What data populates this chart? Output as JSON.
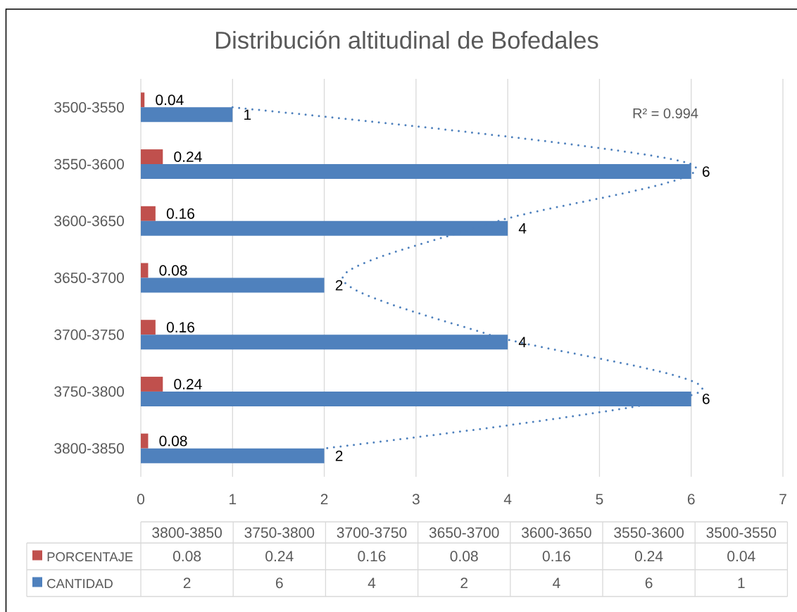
{
  "chart_data": {
    "type": "bar",
    "orientation": "horizontal",
    "title": "Distribución altitudinal de Bofedales",
    "categories": [
      "3500-3550",
      "3550-3600",
      "3600-3650",
      "3650-3700",
      "3700-3750",
      "3750-3800",
      "3800-3850"
    ],
    "series": [
      {
        "name": "PORCENTAJE",
        "color": "#c0504d",
        "values": [
          0.04,
          0.24,
          0.16,
          0.08,
          0.16,
          0.24,
          0.08
        ],
        "value_labels": [
          "0.04",
          "0.24",
          "0.16",
          "0.08",
          "0.16",
          "0.24",
          "0.08"
        ]
      },
      {
        "name": "CANTIDAD",
        "color": "#4f81bd",
        "values": [
          1,
          6,
          4,
          2,
          4,
          6,
          2
        ],
        "value_labels": [
          "1",
          "6",
          "4",
          "2",
          "4",
          "6",
          "2"
        ]
      },
      {
        "type": "line",
        "color": "#4f81bd",
        "line_style": "dotted",
        "values": [
          1,
          6.0,
          3.9,
          2.2,
          3.8,
          6.1,
          2
        ]
      }
    ],
    "xlim": [
      0,
      7
    ],
    "xticks": [
      0,
      1,
      2,
      3,
      4,
      5,
      6,
      7
    ],
    "grid": "x",
    "legend": "bottom",
    "annotations": [
      "R² = 0.994"
    ]
  }
}
